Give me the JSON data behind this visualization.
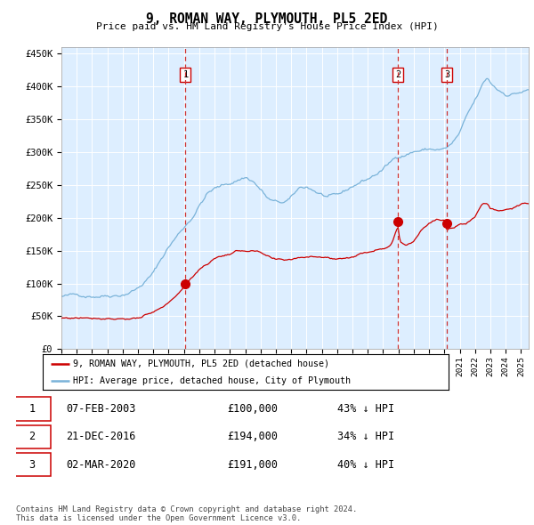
{
  "title": "9, ROMAN WAY, PLYMOUTH, PL5 2ED",
  "subtitle": "Price paid vs. HM Land Registry's House Price Index (HPI)",
  "background_color": "#ffffff",
  "plot_bg_color": "#ddeeff",
  "hpi_color": "#7ab3d9",
  "price_color": "#cc0000",
  "marker_color": "#cc0000",
  "dashed_color": "#cc3333",
  "ylim": [
    0,
    460000
  ],
  "yticks": [
    0,
    50000,
    100000,
    150000,
    200000,
    250000,
    300000,
    350000,
    400000,
    450000
  ],
  "sale_events": [
    {
      "label": "1",
      "date_num": 2003.1,
      "price": 100000,
      "pct": "43%",
      "date_str": "07-FEB-2003"
    },
    {
      "label": "2",
      "date_num": 2016.97,
      "price": 194000,
      "pct": "34%",
      "date_str": "21-DEC-2016"
    },
    {
      "label": "3",
      "date_num": 2020.17,
      "price": 191000,
      "pct": "40%",
      "date_str": "02-MAR-2020"
    }
  ],
  "legend_label_red": "9, ROMAN WAY, PLYMOUTH, PL5 2ED (detached house)",
  "legend_label_blue": "HPI: Average price, detached house, City of Plymouth",
  "footer": "Contains HM Land Registry data © Crown copyright and database right 2024.\nThis data is licensed under the Open Government Licence v3.0.",
  "xlim": [
    1995,
    2025.5
  ],
  "hpi_anchors": [
    [
      1995.0,
      80000
    ],
    [
      1996.0,
      80000
    ],
    [
      1997.0,
      83000
    ],
    [
      1998.0,
      87000
    ],
    [
      1999.0,
      92000
    ],
    [
      2000.0,
      103000
    ],
    [
      2001.0,
      125000
    ],
    [
      2002.0,
      165000
    ],
    [
      2003.0,
      195000
    ],
    [
      2003.5,
      210000
    ],
    [
      2004.0,
      230000
    ],
    [
      2004.5,
      248000
    ],
    [
      2005.0,
      255000
    ],
    [
      2005.5,
      258000
    ],
    [
      2006.0,
      262000
    ],
    [
      2006.5,
      268000
    ],
    [
      2007.0,
      273000
    ],
    [
      2007.5,
      268000
    ],
    [
      2008.0,
      255000
    ],
    [
      2008.5,
      240000
    ],
    [
      2009.0,
      233000
    ],
    [
      2009.5,
      232000
    ],
    [
      2010.0,
      237000
    ],
    [
      2010.5,
      250000
    ],
    [
      2011.0,
      253000
    ],
    [
      2011.5,
      248000
    ],
    [
      2012.0,
      242000
    ],
    [
      2012.5,
      237000
    ],
    [
      2013.0,
      235000
    ],
    [
      2013.5,
      240000
    ],
    [
      2014.0,
      248000
    ],
    [
      2014.5,
      255000
    ],
    [
      2015.0,
      260000
    ],
    [
      2015.5,
      267000
    ],
    [
      2016.0,
      275000
    ],
    [
      2016.5,
      285000
    ],
    [
      2017.0,
      295000
    ],
    [
      2017.5,
      300000
    ],
    [
      2018.0,
      305000
    ],
    [
      2018.5,
      307000
    ],
    [
      2019.0,
      308000
    ],
    [
      2019.5,
      308000
    ],
    [
      2020.0,
      308000
    ],
    [
      2020.5,
      315000
    ],
    [
      2021.0,
      330000
    ],
    [
      2021.5,
      355000
    ],
    [
      2022.0,
      375000
    ],
    [
      2022.5,
      398000
    ],
    [
      2022.8,
      408000
    ],
    [
      2023.0,
      400000
    ],
    [
      2023.5,
      390000
    ],
    [
      2024.0,
      385000
    ],
    [
      2024.5,
      387000
    ],
    [
      2025.0,
      390000
    ],
    [
      2025.5,
      392000
    ]
  ],
  "price_anchors": [
    [
      1995.0,
      47000
    ],
    [
      1995.5,
      47500
    ],
    [
      1996.0,
      48000
    ],
    [
      1996.5,
      49000
    ],
    [
      1997.0,
      50000
    ],
    [
      1997.5,
      51000
    ],
    [
      1998.0,
      52000
    ],
    [
      1999.0,
      53000
    ],
    [
      2000.0,
      55000
    ],
    [
      2001.0,
      60000
    ],
    [
      2002.0,
      72000
    ],
    [
      2002.5,
      85000
    ],
    [
      2003.1,
      100000
    ],
    [
      2003.5,
      110000
    ],
    [
      2004.0,
      125000
    ],
    [
      2005.0,
      142000
    ],
    [
      2006.0,
      150000
    ],
    [
      2006.5,
      153000
    ],
    [
      2007.0,
      155000
    ],
    [
      2007.5,
      155000
    ],
    [
      2008.0,
      150000
    ],
    [
      2008.5,
      142000
    ],
    [
      2009.0,
      135000
    ],
    [
      2009.5,
      133000
    ],
    [
      2010.0,
      135000
    ],
    [
      2010.5,
      138000
    ],
    [
      2011.0,
      140000
    ],
    [
      2011.5,
      143000
    ],
    [
      2012.0,
      143000
    ],
    [
      2012.5,
      141000
    ],
    [
      2013.0,
      140000
    ],
    [
      2013.5,
      142000
    ],
    [
      2014.0,
      145000
    ],
    [
      2014.5,
      148000
    ],
    [
      2015.0,
      152000
    ],
    [
      2015.5,
      157000
    ],
    [
      2016.0,
      162000
    ],
    [
      2016.5,
      168000
    ],
    [
      2016.97,
      194000
    ],
    [
      2017.1,
      172000
    ],
    [
      2017.5,
      168000
    ],
    [
      2018.0,
      175000
    ],
    [
      2018.5,
      195000
    ],
    [
      2019.0,
      205000
    ],
    [
      2019.5,
      210000
    ],
    [
      2020.0,
      208000
    ],
    [
      2020.17,
      191000
    ],
    [
      2020.5,
      195000
    ],
    [
      2021.0,
      200000
    ],
    [
      2021.5,
      205000
    ],
    [
      2022.0,
      215000
    ],
    [
      2022.5,
      235000
    ],
    [
      2022.8,
      235000
    ],
    [
      2023.0,
      228000
    ],
    [
      2023.5,
      225000
    ],
    [
      2024.0,
      228000
    ],
    [
      2024.5,
      232000
    ],
    [
      2025.0,
      235000
    ],
    [
      2025.5,
      236000
    ]
  ]
}
